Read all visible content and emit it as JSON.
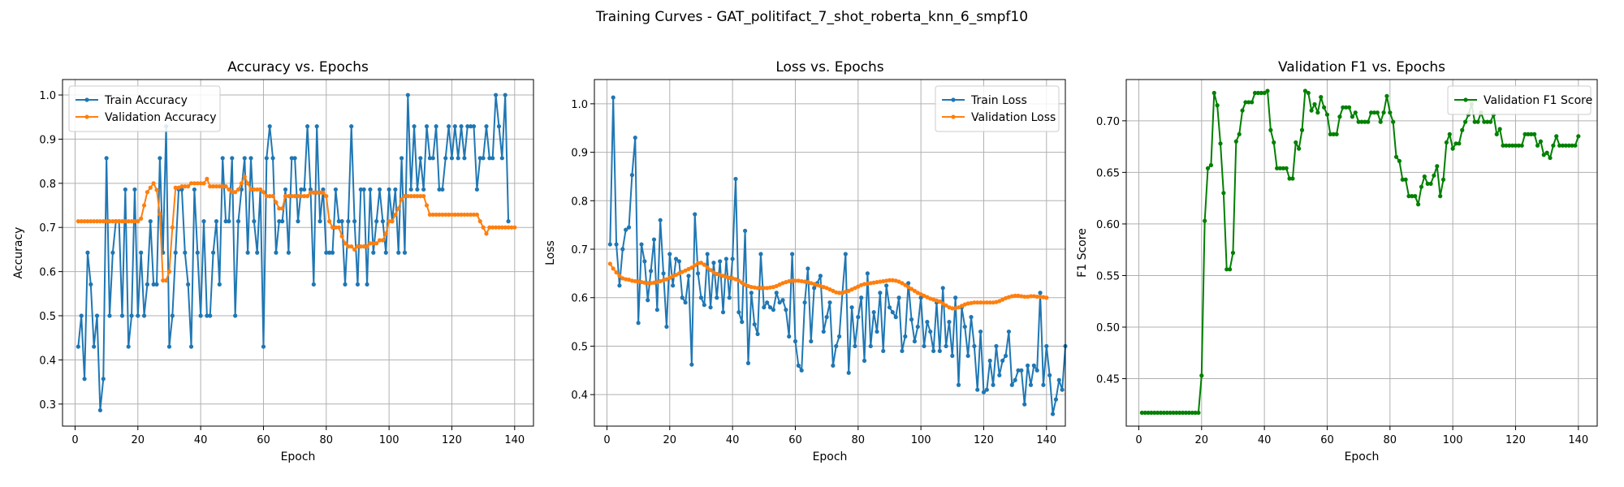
{
  "suptitle": "Training Curves - GAT_politifact_7_shot_roberta_knn_6_smpf10",
  "colors": {
    "blue": "#1f77b4",
    "orange": "#ff7f0e",
    "green": "#008000",
    "grid": "#b0b0b0"
  },
  "chart_data": [
    {
      "type": "line",
      "title": "Accuracy vs. Epochs",
      "xlabel": "Epoch",
      "ylabel": "Accuracy",
      "xlim": [
        -4,
        146
      ],
      "ylim": [
        0.25,
        1.035
      ],
      "xticks": [
        0,
        20,
        40,
        60,
        80,
        100,
        120,
        140
      ],
      "yticks": [
        0.3,
        0.4,
        0.5,
        0.6,
        0.7,
        0.8,
        0.9,
        1.0
      ],
      "tick_decimals": 1,
      "grid": true,
      "legend": "top-left",
      "x_start": 1,
      "series": [
        {
          "name": "Train Accuracy",
          "color": "#1f77b4",
          "values": [
            0.43,
            0.5,
            0.357,
            0.643,
            0.571,
            0.43,
            0.5,
            0.286,
            0.357,
            0.857,
            0.5,
            0.643,
            0.714,
            0.714,
            0.5,
            0.786,
            0.43,
            0.5,
            0.786,
            0.5,
            0.643,
            0.5,
            0.571,
            0.714,
            0.571,
            0.571,
            0.857,
            0.643,
            0.929,
            0.43,
            0.5,
            0.643,
            0.786,
            0.786,
            0.643,
            0.571,
            0.43,
            0.786,
            0.643,
            0.5,
            0.714,
            0.5,
            0.5,
            0.643,
            0.714,
            0.571,
            0.857,
            0.714,
            0.714,
            0.857,
            0.5,
            0.714,
            0.786,
            0.857,
            0.643,
            0.857,
            0.714,
            0.643,
            0.786,
            0.43,
            0.857,
            0.929,
            0.857,
            0.643,
            0.714,
            0.714,
            0.786,
            0.643,
            0.857,
            0.857,
            0.714,
            0.786,
            0.786,
            0.929,
            0.786,
            0.571,
            0.929,
            0.714,
            0.786,
            0.643,
            0.643,
            0.643,
            0.786,
            0.714,
            0.714,
            0.571,
            0.714,
            0.929,
            0.714,
            0.571,
            0.786,
            0.786,
            0.571,
            0.786,
            0.643,
            0.714,
            0.786,
            0.714,
            0.643,
            0.786,
            0.714,
            0.786,
            0.643,
            0.857,
            0.643,
            1.0,
            0.786,
            0.929,
            0.786,
            0.857,
            0.786,
            0.929,
            0.857,
            0.857,
            0.929,
            0.786,
            0.786,
            0.857,
            0.929,
            0.857,
            0.929,
            0.857,
            0.929,
            0.857,
            0.929,
            0.929,
            0.929,
            0.786,
            0.857,
            0.857,
            0.929,
            0.857,
            0.857,
            1.0,
            0.929,
            0.857,
            1.0,
            0.714
          ]
        },
        {
          "name": "Validation Accuracy",
          "color": "#ff7f0e",
          "values": [
            0.714,
            0.714,
            0.714,
            0.714,
            0.714,
            0.714,
            0.714,
            0.714,
            0.714,
            0.714,
            0.714,
            0.714,
            0.714,
            0.714,
            0.714,
            0.714,
            0.714,
            0.714,
            0.714,
            0.714,
            0.72,
            0.75,
            0.78,
            0.79,
            0.8,
            0.785,
            0.73,
            0.58,
            0.58,
            0.6,
            0.7,
            0.79,
            0.79,
            0.793,
            0.793,
            0.793,
            0.8,
            0.8,
            0.8,
            0.8,
            0.8,
            0.81,
            0.793,
            0.793,
            0.793,
            0.793,
            0.793,
            0.793,
            0.786,
            0.78,
            0.78,
            0.786,
            0.8,
            0.815,
            0.8,
            0.786,
            0.786,
            0.786,
            0.786,
            0.78,
            0.771,
            0.771,
            0.771,
            0.757,
            0.743,
            0.743,
            0.771,
            0.771,
            0.771,
            0.771,
            0.771,
            0.771,
            0.771,
            0.771,
            0.779,
            0.779,
            0.779,
            0.779,
            0.779,
            0.771,
            0.714,
            0.7,
            0.7,
            0.7,
            0.68,
            0.664,
            0.657,
            0.657,
            0.65,
            0.657,
            0.657,
            0.657,
            0.657,
            0.664,
            0.664,
            0.664,
            0.671,
            0.671,
            0.686,
            0.714,
            0.714,
            0.729,
            0.743,
            0.764,
            0.771,
            0.771,
            0.771,
            0.771,
            0.771,
            0.771,
            0.771,
            0.75,
            0.729,
            0.729,
            0.729,
            0.729,
            0.729,
            0.729,
            0.729,
            0.729,
            0.729,
            0.729,
            0.729,
            0.729,
            0.729,
            0.729,
            0.729,
            0.729,
            0.714,
            0.7,
            0.686,
            0.7,
            0.7,
            0.7,
            0.7,
            0.7,
            0.7,
            0.7,
            0.7,
            0.7
          ]
        }
      ]
    },
    {
      "type": "line",
      "title": "Loss vs. Epochs",
      "xlabel": "Epoch",
      "ylabel": "Loss",
      "xlim": [
        -4,
        146
      ],
      "ylim": [
        0.335,
        1.05
      ],
      "xticks": [
        0,
        20,
        40,
        60,
        80,
        100,
        120,
        140
      ],
      "yticks": [
        0.4,
        0.5,
        0.6,
        0.7,
        0.8,
        0.9,
        1.0
      ],
      "tick_decimals": 1,
      "grid": true,
      "legend": "top-right",
      "x_start": 1,
      "series": [
        {
          "name": "Train Loss",
          "color": "#1f77b4",
          "values": [
            0.71,
            1.013,
            0.71,
            0.625,
            0.7,
            0.74,
            0.745,
            0.853,
            0.93,
            0.548,
            0.71,
            0.675,
            0.595,
            0.655,
            0.72,
            0.575,
            0.76,
            0.65,
            0.54,
            0.69,
            0.625,
            0.68,
            0.675,
            0.6,
            0.59,
            0.645,
            0.462,
            0.772,
            0.65,
            0.6,
            0.585,
            0.69,
            0.58,
            0.672,
            0.6,
            0.675,
            0.57,
            0.68,
            0.6,
            0.68,
            0.845,
            0.57,
            0.55,
            0.738,
            0.465,
            0.61,
            0.545,
            0.525,
            0.69,
            0.58,
            0.59,
            0.58,
            0.575,
            0.61,
            0.59,
            0.595,
            0.575,
            0.52,
            0.69,
            0.51,
            0.46,
            0.45,
            0.59,
            0.66,
            0.51,
            0.62,
            0.63,
            0.645,
            0.53,
            0.56,
            0.59,
            0.46,
            0.5,
            0.52,
            0.61,
            0.69,
            0.445,
            0.58,
            0.5,
            0.56,
            0.6,
            0.47,
            0.65,
            0.5,
            0.57,
            0.53,
            0.61,
            0.49,
            0.625,
            0.58,
            0.57,
            0.56,
            0.6,
            0.49,
            0.52,
            0.63,
            0.555,
            0.51,
            0.54,
            0.6,
            0.5,
            0.55,
            0.53,
            0.49,
            0.59,
            0.49,
            0.62,
            0.5,
            0.55,
            0.48,
            0.6,
            0.42,
            0.58,
            0.54,
            0.48,
            0.56,
            0.5,
            0.41,
            0.53,
            0.405,
            0.41,
            0.47,
            0.42,
            0.5,
            0.44,
            0.47,
            0.48,
            0.53,
            0.42,
            0.43,
            0.45,
            0.45,
            0.38,
            0.46,
            0.42,
            0.46,
            0.45,
            0.61,
            0.42,
            0.5,
            0.44,
            0.36,
            0.39,
            0.43,
            0.41,
            0.5
          ]
        },
        {
          "name": "Validation Loss",
          "color": "#ff7f0e",
          "values": [
            0.67,
            0.66,
            0.652,
            0.645,
            0.64,
            0.638,
            0.637,
            0.635,
            0.634,
            0.633,
            0.632,
            0.631,
            0.63,
            0.63,
            0.631,
            0.632,
            0.634,
            0.636,
            0.638,
            0.641,
            0.644,
            0.647,
            0.65,
            0.653,
            0.656,
            0.659,
            0.662,
            0.667,
            0.671,
            0.672,
            0.668,
            0.662,
            0.657,
            0.652,
            0.649,
            0.647,
            0.645,
            0.643,
            0.641,
            0.64,
            0.638,
            0.635,
            0.631,
            0.627,
            0.624,
            0.622,
            0.621,
            0.62,
            0.62,
            0.62,
            0.62,
            0.621,
            0.622,
            0.624,
            0.627,
            0.63,
            0.632,
            0.634,
            0.635,
            0.635,
            0.635,
            0.634,
            0.633,
            0.632,
            0.63,
            0.628,
            0.626,
            0.624,
            0.622,
            0.62,
            0.617,
            0.614,
            0.611,
            0.61,
            0.61,
            0.612,
            0.614,
            0.617,
            0.62,
            0.623,
            0.626,
            0.628,
            0.629,
            0.63,
            0.631,
            0.632,
            0.633,
            0.634,
            0.635,
            0.636,
            0.636,
            0.635,
            0.633,
            0.63,
            0.626,
            0.622,
            0.618,
            0.614,
            0.61,
            0.607,
            0.604,
            0.601,
            0.598,
            0.596,
            0.594,
            0.592,
            0.588,
            0.584,
            0.58,
            0.578,
            0.578,
            0.58,
            0.583,
            0.586,
            0.588,
            0.589,
            0.59,
            0.59,
            0.59,
            0.59,
            0.59,
            0.59,
            0.59,
            0.591,
            0.593,
            0.596,
            0.599,
            0.601,
            0.603,
            0.604,
            0.604,
            0.603,
            0.602,
            0.602,
            0.603,
            0.603,
            0.602,
            0.602,
            0.601,
            0.6
          ]
        }
      ]
    },
    {
      "type": "line",
      "title": "Validation F1 vs. Epochs",
      "xlabel": "Epoch",
      "ylabel": "F1 Score",
      "xlim": [
        -4,
        146
      ],
      "ylim": [
        0.404,
        0.74
      ],
      "xticks": [
        0,
        20,
        40,
        60,
        80,
        100,
        120,
        140
      ],
      "yticks": [
        0.45,
        0.5,
        0.55,
        0.6,
        0.65,
        0.7
      ],
      "tick_decimals": 2,
      "grid": true,
      "legend": "top-right",
      "x_start": 1,
      "series": [
        {
          "name": "Validation F1 Score",
          "color": "#008000",
          "values": [
            0.417,
            0.417,
            0.417,
            0.417,
            0.417,
            0.417,
            0.417,
            0.417,
            0.417,
            0.417,
            0.417,
            0.417,
            0.417,
            0.417,
            0.417,
            0.417,
            0.417,
            0.417,
            0.417,
            0.453,
            0.603,
            0.654,
            0.657,
            0.727,
            0.715,
            0.678,
            0.63,
            0.556,
            0.556,
            0.572,
            0.68,
            0.687,
            0.71,
            0.718,
            0.718,
            0.718,
            0.727,
            0.727,
            0.727,
            0.727,
            0.729,
            0.691,
            0.679,
            0.654,
            0.654,
            0.654,
            0.654,
            0.644,
            0.644,
            0.679,
            0.673,
            0.691,
            0.729,
            0.727,
            0.71,
            0.716,
            0.708,
            0.723,
            0.713,
            0.706,
            0.687,
            0.687,
            0.687,
            0.704,
            0.713,
            0.713,
            0.713,
            0.704,
            0.708,
            0.699,
            0.699,
            0.699,
            0.699,
            0.708,
            0.708,
            0.708,
            0.699,
            0.708,
            0.724,
            0.708,
            0.699,
            0.665,
            0.661,
            0.643,
            0.643,
            0.627,
            0.627,
            0.627,
            0.619,
            0.636,
            0.646,
            0.639,
            0.639,
            0.647,
            0.656,
            0.627,
            0.643,
            0.679,
            0.687,
            0.673,
            0.678,
            0.678,
            0.691,
            0.699,
            0.706,
            0.716,
            0.699,
            0.699,
            0.708,
            0.699,
            0.699,
            0.699,
            0.706,
            0.687,
            0.692,
            0.676,
            0.676,
            0.676,
            0.676,
            0.676,
            0.676,
            0.676,
            0.687,
            0.687,
            0.687,
            0.687,
            0.676,
            0.68,
            0.667,
            0.669,
            0.664,
            0.676,
            0.685,
            0.676,
            0.676,
            0.676,
            0.676,
            0.676,
            0.676,
            0.685
          ]
        }
      ]
    }
  ]
}
